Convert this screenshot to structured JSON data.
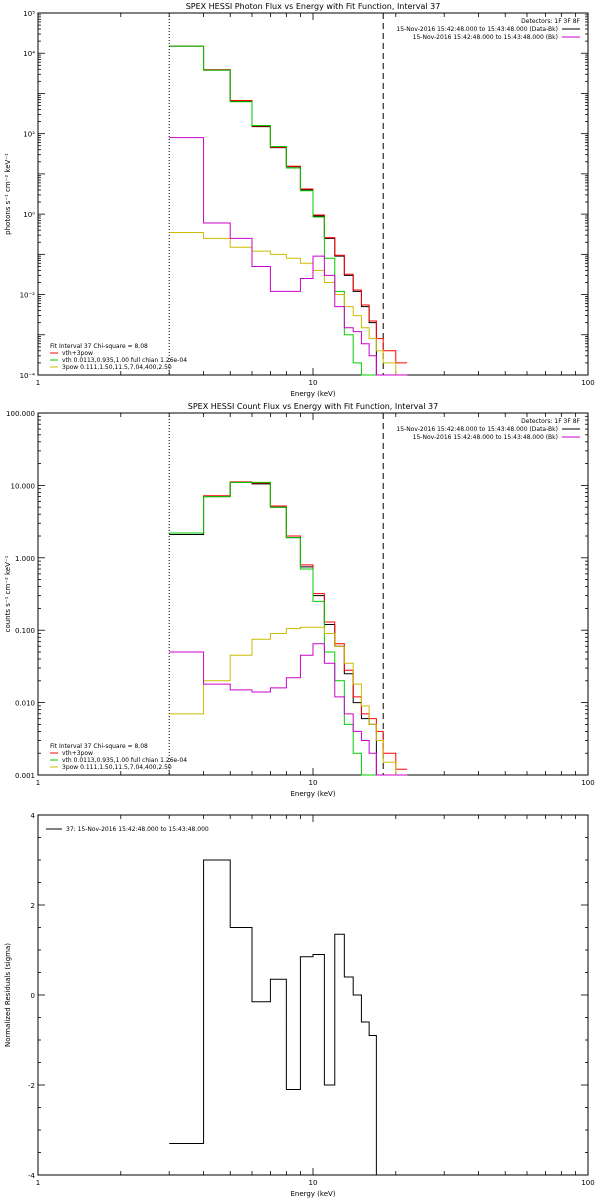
{
  "colors": {
    "axes": "#000000",
    "spectrum": "#000000",
    "background": "#cc00cc",
    "vth": "#00cc00",
    "pow": "#ccbb00",
    "sum": "#ff0000"
  },
  "chart_data": [
    {
      "type": "line",
      "title": "SPEX HESSI Photon Flux vs Energy with Fit Function, Interval 37",
      "xlabel": "Energy (keV)",
      "ylabel": "photons s⁻¹ cm⁻² keV⁻¹",
      "xscale": "log",
      "yscale": "log",
      "xlim": [
        1,
        100
      ],
      "ylim": [
        0.0001,
        100000
      ],
      "xticks": [
        {
          "v": 1,
          "label": "1"
        },
        {
          "v": 10,
          "label": "10"
        },
        {
          "v": 100,
          "label": "100"
        }
      ],
      "yticks": [
        {
          "v": 0.0001,
          "label": "10⁻⁴"
        },
        {
          "v": 0.01,
          "label": "10⁻²"
        },
        {
          "v": 1,
          "label": "10⁰"
        },
        {
          "v": 100,
          "label": "10²"
        },
        {
          "v": 10000,
          "label": "10⁴"
        },
        {
          "v": 100000,
          "label": "10⁵"
        }
      ],
      "vlines": [
        {
          "x": 3.0,
          "style": "dotted"
        },
        {
          "x": 18.0,
          "style": "dashed"
        }
      ],
      "legend_topright": [
        {
          "text": "Detectors: 1F 3F 8F",
          "color": "",
          "line": false
        },
        {
          "text": "15-Nov-2016 15:42:48.000 to 15:43:48.000 (Data-Bk)",
          "color": "#000000",
          "line": true
        },
        {
          "text": "15-Nov-2016 15:42:48.000 to 15:43:48.000 (Bk)",
          "color": "#cc00cc",
          "line": true
        }
      ],
      "legend_bottomleft": [
        {
          "text": "Fit Interval 37    Chi-square = 8.08",
          "color": "",
          "line": false
        },
        {
          "text": "vth+3pow",
          "color": "#ff0000",
          "line": true
        },
        {
          "text": "vth 0.0113,0.935,1.00  full chian 1.26e-04",
          "color": "#00cc00",
          "line": true
        },
        {
          "text": "3pow 0.111,1.50,11.5,7.04,400,2.50",
          "color": "#ccbb00",
          "line": true
        }
      ],
      "edges": [
        3.0,
        4.0,
        5.0,
        6.0,
        7.0,
        8.0,
        9.0,
        10.0,
        11.0,
        12.0,
        13.0,
        14.0,
        15.0,
        16.0,
        17.0,
        18.0,
        20.0,
        22.0
      ],
      "series": [
        {
          "name": "15-Nov-2016 15:42:48.000 to 15:43:48.000 (Data-Bk)",
          "color": "#000000",
          "values": [
            15000,
            3800,
            650,
            150,
            45,
            15,
            4,
            0.9,
            0.25,
            0.09,
            0.03,
            0.012,
            0.005,
            0.002,
            null,
            null,
            null
          ]
        },
        {
          "name": "vth+3pow",
          "color": "#ff0000",
          "values": [
            15000,
            3900,
            670,
            155,
            46,
            15.5,
            4.2,
            0.95,
            0.26,
            0.095,
            0.032,
            0.013,
            0.0055,
            0.0022,
            0.0008,
            0.0004,
            0.0002
          ]
        },
        {
          "name": "vth",
          "color": "#00cc00",
          "values": [
            15000,
            3800,
            620,
            160,
            48,
            14,
            3.8,
            0.85,
            0.08,
            0.012,
            0.001,
            0.0002,
            null,
            null,
            null,
            null,
            null
          ]
        },
        {
          "name": "3pow",
          "color": "#ccbb00",
          "values": [
            0.35,
            0.25,
            0.15,
            0.12,
            0.1,
            0.08,
            0.06,
            0.04,
            0.02,
            0.01,
            0.005,
            0.003,
            0.0015,
            0.0008,
            0.0004,
            0.0002,
            0.0001
          ]
        },
        {
          "name": "15-Nov-2016 15:42:48.000 to 15:43:48.000 (Bk)",
          "color": "#cc00cc",
          "values": [
            80,
            0.6,
            0.25,
            0.05,
            0.012,
            0.012,
            0.025,
            0.09,
            0.03,
            0.005,
            0.0015,
            0.0012,
            0.0006,
            0.0003,
            null,
            null,
            null
          ]
        }
      ]
    },
    {
      "type": "line",
      "title": "SPEX HESSI Count Flux vs Energy with Fit Function, Interval 37",
      "xlabel": "Energy (keV)",
      "ylabel": "counts s⁻¹ cm⁻² keV⁻¹",
      "xscale": "log",
      "yscale": "log",
      "xlim": [
        1,
        100
      ],
      "ylim": [
        0.001,
        100
      ],
      "xticks": [
        {
          "v": 1,
          "label": "1"
        },
        {
          "v": 10,
          "label": "10"
        },
        {
          "v": 100,
          "label": "100"
        }
      ],
      "yticks": [
        {
          "v": 0.001,
          "label": "0.001"
        },
        {
          "v": 0.01,
          "label": "0.010"
        },
        {
          "v": 0.1,
          "label": "0.100"
        },
        {
          "v": 1,
          "label": "1.000"
        },
        {
          "v": 10,
          "label": "10.000"
        },
        {
          "v": 100,
          "label": "100.000"
        }
      ],
      "vlines": [
        {
          "x": 3.0,
          "style": "dotted"
        },
        {
          "x": 18.0,
          "style": "dashed"
        }
      ],
      "legend_topright": [
        {
          "text": "Detectors: 1F 3F 8F",
          "color": "",
          "line": false
        },
        {
          "text": "15-Nov-2016 15:42:48.000 to 15:43:48.000 (Data-Bk)",
          "color": "#000000",
          "line": true
        },
        {
          "text": "15-Nov-2016 15:42:48.000 to 15:43:48.000 (Bk)",
          "color": "#cc00cc",
          "line": true
        }
      ],
      "legend_bottomleft": [
        {
          "text": "Fit Interval 37    Chi-square = 8.08",
          "color": "",
          "line": false
        },
        {
          "text": "vth+3pow",
          "color": "#ff0000",
          "line": true
        },
        {
          "text": "vth 0.0113,0.935,1.00  full chian 1.26e-04",
          "color": "#00cc00",
          "line": true
        },
        {
          "text": "3pow 0.111,1.50,11.5,7.04,400,2.50",
          "color": "#ccbb00",
          "line": true
        }
      ],
      "edges": [
        3.0,
        4.0,
        5.0,
        6.0,
        7.0,
        8.0,
        9.0,
        10.0,
        11.0,
        12.0,
        13.0,
        14.0,
        15.0,
        16.0,
        17.0,
        18.0,
        20.0,
        22.0
      ],
      "series": [
        {
          "name": "15-Nov-2016 15:42:48.000 to 15:43:48.000 (Data-Bk)",
          "color": "#000000",
          "values": [
            2.1,
            7.0,
            11.0,
            10.5,
            5.0,
            1.9,
            0.75,
            0.3,
            0.12,
            0.06,
            0.025,
            0.01,
            0.006,
            0.005,
            null,
            null,
            null
          ]
        },
        {
          "name": "vth+3pow",
          "color": "#ff0000",
          "values": [
            2.2,
            7.2,
            11.2,
            10.8,
            5.2,
            2.0,
            0.8,
            0.32,
            0.13,
            0.065,
            0.028,
            0.012,
            0.007,
            0.006,
            0.004,
            0.002,
            0.0012
          ]
        },
        {
          "name": "vth",
          "color": "#00cc00",
          "values": [
            2.2,
            7.0,
            11.0,
            11.0,
            5.0,
            1.9,
            0.7,
            0.25,
            0.05,
            0.02,
            0.005,
            0.002,
            0.001,
            null,
            null,
            null,
            null
          ]
        },
        {
          "name": "3pow",
          "color": "#ccbb00",
          "values": [
            0.007,
            0.02,
            0.045,
            0.075,
            0.09,
            0.105,
            0.11,
            0.11,
            0.09,
            0.06,
            0.035,
            0.018,
            0.009,
            0.005,
            0.003,
            0.0015,
            0.001
          ]
        },
        {
          "name": "15-Nov-2016 15:42:48.000 to 15:43:48.000 (Bk)",
          "color": "#cc00cc",
          "values": [
            0.05,
            0.018,
            0.015,
            0.014,
            0.016,
            0.022,
            0.045,
            0.065,
            0.035,
            0.012,
            0.007,
            0.004,
            0.003,
            0.002,
            null,
            null,
            null
          ]
        }
      ]
    },
    {
      "type": "line",
      "title": "",
      "xlabel": "Energy (keV)",
      "ylabel": "Normalized Residuals (sigma)",
      "xscale": "log",
      "yscale": "linear",
      "xlim": [
        1,
        100
      ],
      "ylim": [
        -4,
        4
      ],
      "xticks": [
        {
          "v": 1,
          "label": "1"
        },
        {
          "v": 10,
          "label": "10"
        },
        {
          "v": 100,
          "label": "100"
        }
      ],
      "yticks": [
        {
          "v": -4,
          "label": "-4"
        },
        {
          "v": -2,
          "label": "-2"
        },
        {
          "v": 0,
          "label": "0"
        },
        {
          "v": 2,
          "label": "2"
        },
        {
          "v": 4,
          "label": "4"
        }
      ],
      "vlines": [],
      "legend_topright": [],
      "legend_topleft": [
        {
          "text": "37: 15-Nov-2016 15:42:48.000 to 15:43:48.000",
          "color": "#000000",
          "line": true
        }
      ],
      "legend_bottomleft": [],
      "edges": [
        3.0,
        4.0,
        5.0,
        6.0,
        7.0,
        8.0,
        9.0,
        10.0,
        11.0,
        12.0,
        13.0,
        14.0,
        15.0,
        16.0,
        17.0,
        18.0
      ],
      "series": [
        {
          "name": "37: 15-Nov-2016 15:42:48.000 to 15:43:48.000",
          "color": "#000000",
          "values": [
            -3.3,
            3.0,
            1.5,
            -0.15,
            0.35,
            -2.1,
            0.85,
            0.9,
            -2.0,
            1.35,
            0.4,
            0.0,
            -0.6,
            -0.9,
            -4.0
          ]
        }
      ]
    }
  ]
}
